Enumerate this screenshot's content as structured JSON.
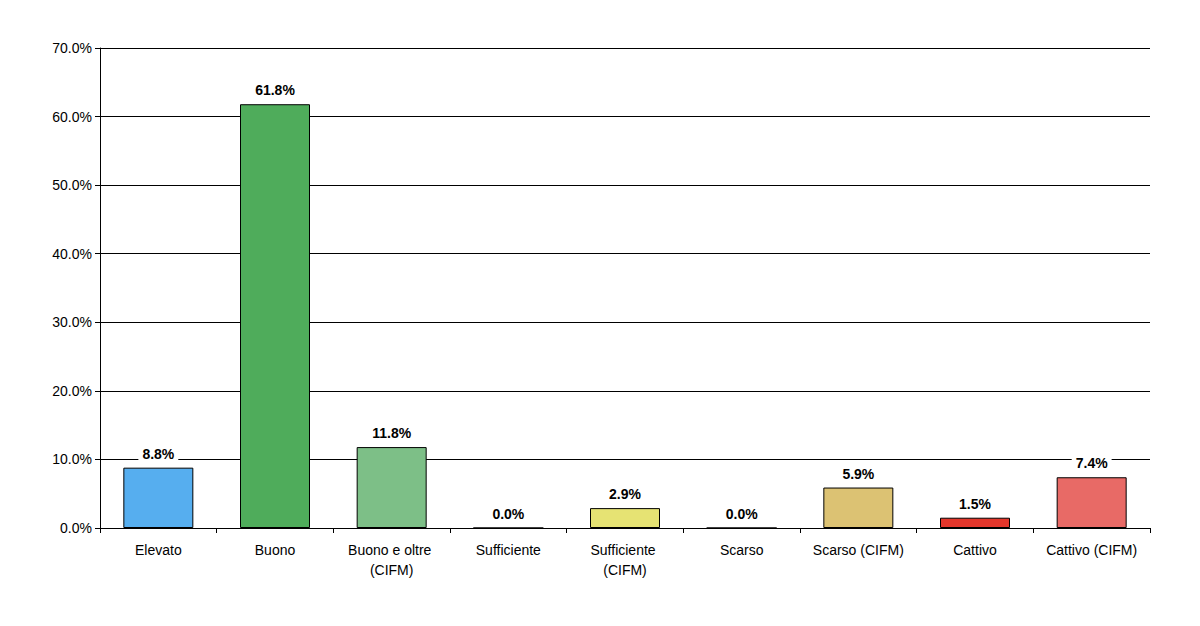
{
  "chart_data": {
    "type": "bar",
    "categories": [
      "Elevato",
      "Buono",
      "Buono e oltre (CIFM)",
      "Sufficiente",
      "Sufficiente (CIFM)",
      "Scarso",
      "Scarso (CIFM)",
      "Cattivo",
      "Cattivo (CIFM)"
    ],
    "values": [
      8.8,
      61.8,
      11.8,
      0.0,
      2.9,
      0.0,
      5.9,
      1.5,
      7.4
    ],
    "value_labels": [
      "8.8%",
      "61.8%",
      "11.8%",
      "0.0%",
      "2.9%",
      "0.0%",
      "5.9%",
      "1.5%",
      "7.4%"
    ],
    "colors": [
      "#56aeef",
      "#4fac5b",
      "#7dbf87",
      "#f0e35a",
      "#e6e373",
      "#d6bd72",
      "#dcc273",
      "#e2362b",
      "#e86a66"
    ],
    "ylim": [
      0,
      70
    ],
    "yticks": [
      {
        "value": 0,
        "label": "0.0%"
      },
      {
        "value": 10,
        "label": "10.0%"
      },
      {
        "value": 20,
        "label": "20.0%"
      },
      {
        "value": 30,
        "label": "30.0%"
      },
      {
        "value": 40,
        "label": "40.0%"
      },
      {
        "value": 50,
        "label": "50.0%"
      },
      {
        "value": 60,
        "label": "60.0%"
      },
      {
        "value": 70,
        "label": "70.0%"
      }
    ],
    "grid": true,
    "data_labels": true
  }
}
